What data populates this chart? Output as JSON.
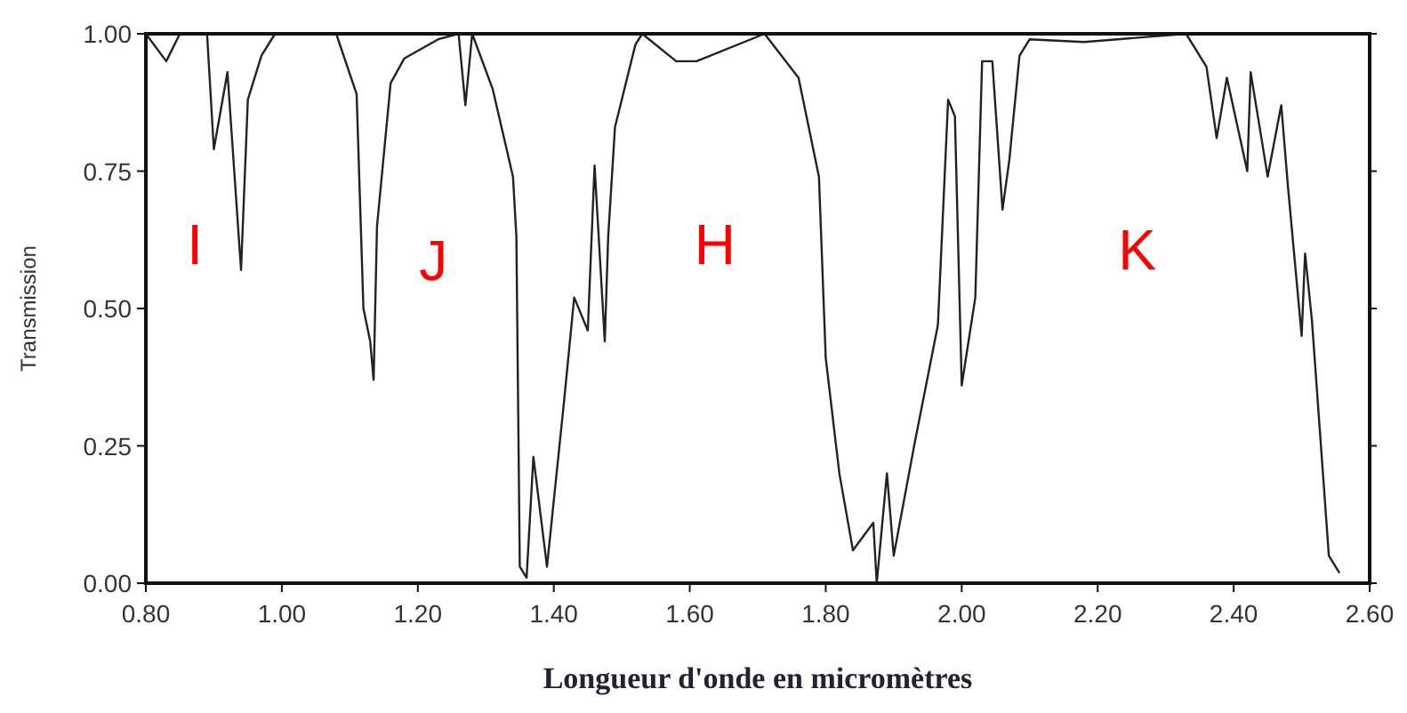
{
  "chart_data": {
    "type": "line",
    "xlabel": "Longueur d'onde en micromètres",
    "ylabel": "Transmission",
    "xlim": [
      0.8,
      2.6
    ],
    "ylim": [
      0,
      1
    ],
    "xticks": [
      {
        "value": 0.8,
        "label": "0.80"
      },
      {
        "value": 1,
        "label": "1.00"
      },
      {
        "value": 1.2,
        "label": "1.20"
      },
      {
        "value": 1.4,
        "label": "1.40"
      },
      {
        "value": 1.6,
        "label": "1.60"
      },
      {
        "value": 1.8,
        "label": "1.80"
      },
      {
        "value": 2,
        "label": "2.00"
      },
      {
        "value": 2.2,
        "label": "2.20"
      },
      {
        "value": 2.4,
        "label": "2.40"
      },
      {
        "value": 2.6,
        "label": "2.60"
      }
    ],
    "yticks": [
      {
        "value": 0,
        "label": "0.00"
      },
      {
        "value": 0.25,
        "label": "0.25"
      },
      {
        "value": 0.5,
        "label": "0.50"
      },
      {
        "value": 0.75,
        "label": "0.75"
      },
      {
        "value": 1,
        "label": "1.00"
      }
    ],
    "grid": false,
    "marker": "none",
    "line_style": "solid",
    "annotations": [
      "I",
      "J",
      "H",
      "K"
    ],
    "series": [
      {
        "color": "#222222",
        "x": [
          0.8,
          0.83,
          0.85,
          0.89,
          0.9,
          0.92,
          0.94,
          0.95,
          0.97,
          0.99,
          1.08,
          1.11,
          1.12,
          1.13,
          1.135,
          1.14,
          1.16,
          1.18,
          1.23,
          1.26,
          1.27,
          1.28,
          1.31,
          1.34,
          1.345,
          1.35,
          1.36,
          1.37,
          1.39,
          1.415,
          1.43,
          1.45,
          1.46,
          1.475,
          1.48,
          1.49,
          1.52,
          1.53,
          1.58,
          1.61,
          1.71,
          1.76,
          1.79,
          1.8,
          1.82,
          1.84,
          1.87,
          1.875,
          1.89,
          1.9,
          1.93,
          1.965,
          1.98,
          1.99,
          2.0,
          2.02,
          2.03,
          2.045,
          2.06,
          2.07,
          2.085,
          2.1,
          2.18,
          2.33,
          2.36,
          2.375,
          2.39,
          2.42,
          2.425,
          2.45,
          2.47,
          2.48,
          2.5,
          2.505,
          2.515,
          2.54,
          2.555
        ],
        "values": [
          1.0,
          0.95,
          1.0,
          1.0,
          0.79,
          0.93,
          0.57,
          0.88,
          0.96,
          1.0,
          1.0,
          0.89,
          0.5,
          0.44,
          0.37,
          0.65,
          0.91,
          0.955,
          0.99,
          1.0,
          0.87,
          1.0,
          0.9,
          0.74,
          0.63,
          0.03,
          0.01,
          0.23,
          0.03,
          0.33,
          0.52,
          0.46,
          0.76,
          0.44,
          0.63,
          0.83,
          0.98,
          1.0,
          0.95,
          0.95,
          1.0,
          0.92,
          0.74,
          0.41,
          0.2,
          0.06,
          0.11,
          0.0,
          0.2,
          0.05,
          0.25,
          0.47,
          0.88,
          0.85,
          0.36,
          0.52,
          0.95,
          0.95,
          0.68,
          0.77,
          0.96,
          0.99,
          0.985,
          1.0,
          0.94,
          0.81,
          0.92,
          0.75,
          0.93,
          0.74,
          0.87,
          0.72,
          0.45,
          0.6,
          0.48,
          0.05,
          0.02
        ]
      }
    ]
  }
}
